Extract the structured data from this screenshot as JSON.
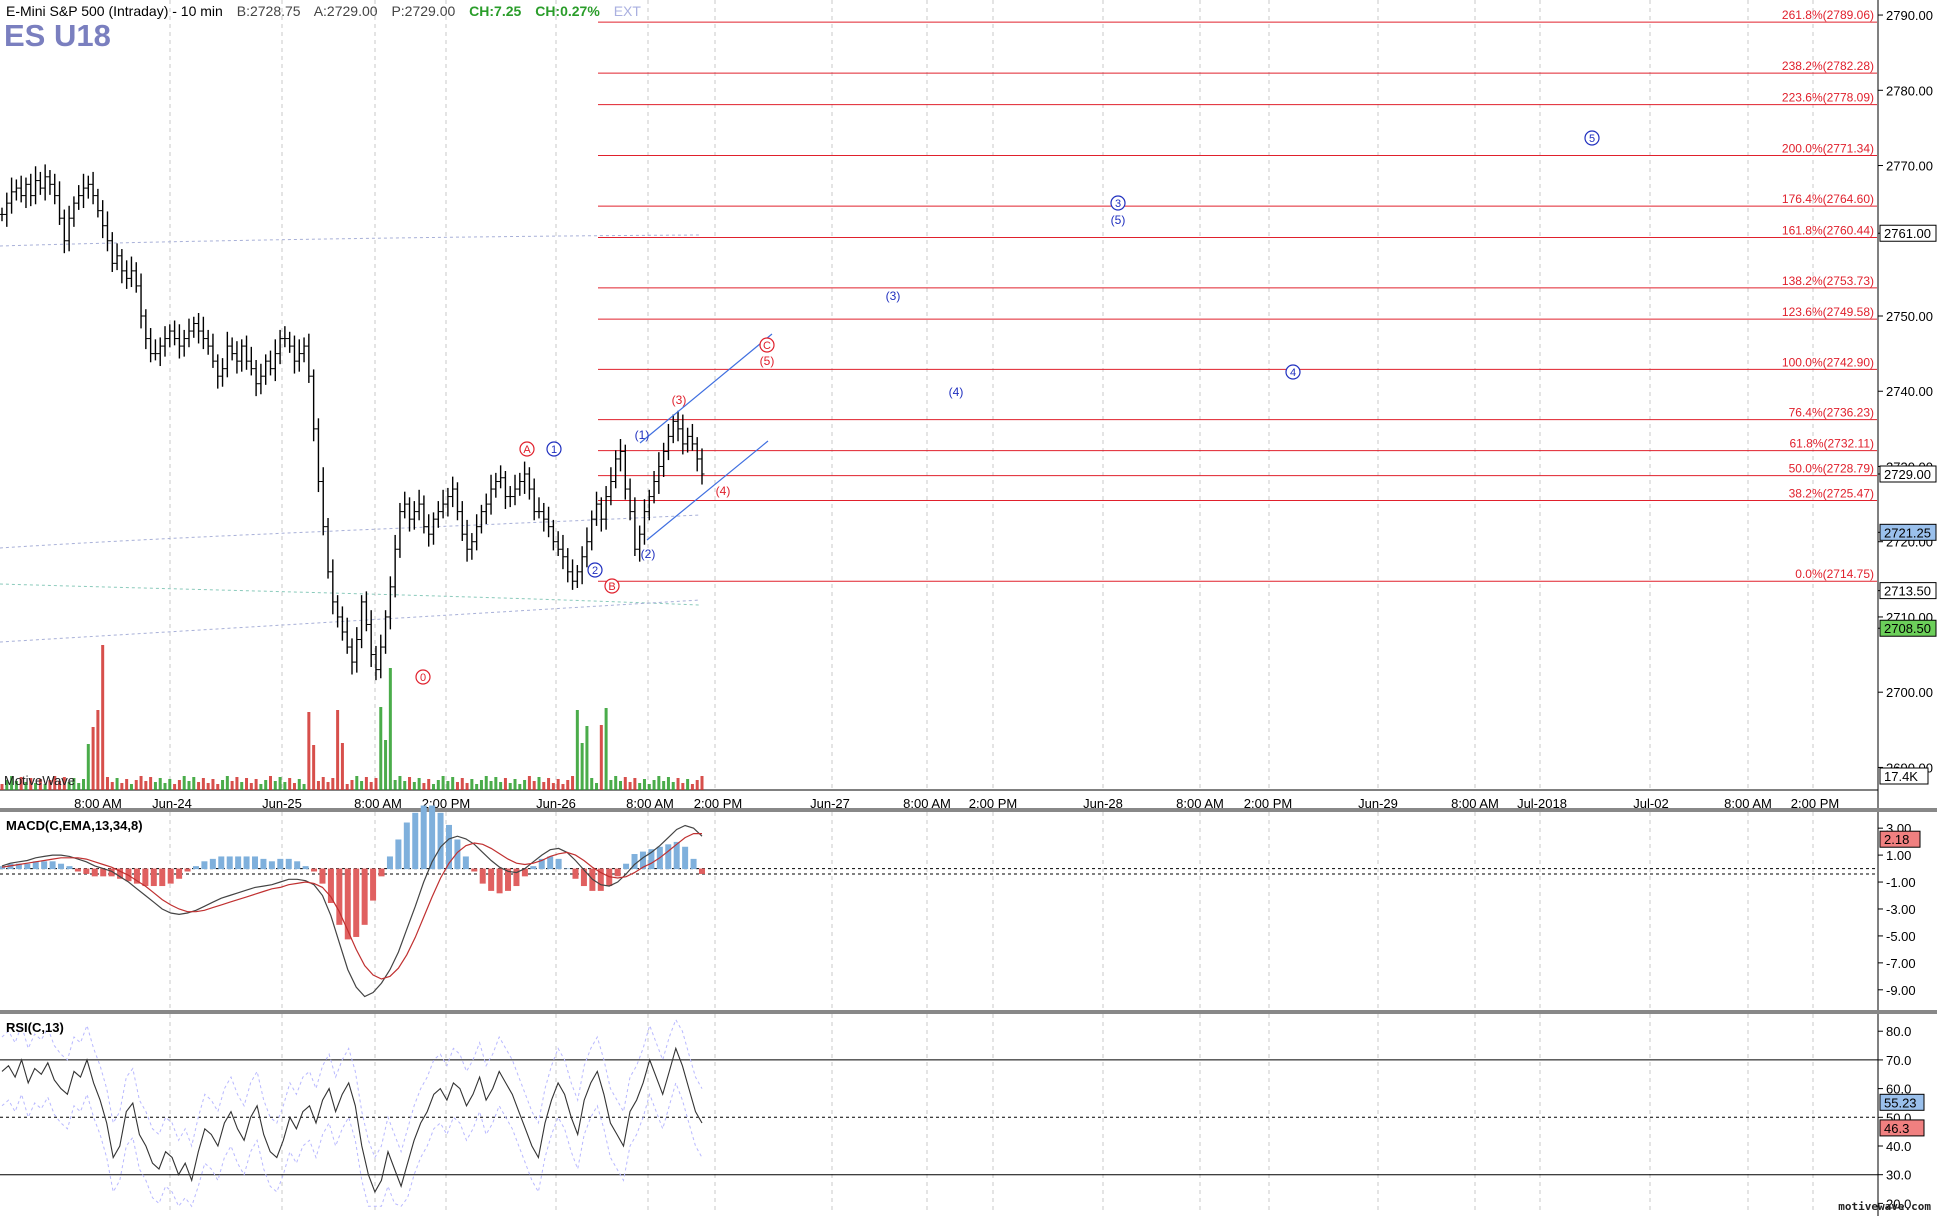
{
  "header": {
    "title": "E-Mini S&P 500 (Intraday) - 10 min",
    "bid": "B:2728.75",
    "ask": "A:2729.00",
    "price": "P:2729.00",
    "change": "CH:7.25",
    "change_pct": "CH:0.27%",
    "ext": "EXT",
    "symbol": "ES U18"
  },
  "colors": {
    "fib": "#e0202c",
    "wave_blue": "#1f2fbf",
    "wave_red": "#e0202c",
    "channel": "#3f6fe0",
    "up_bar": "#2a9d2a",
    "down_bar": "#d0302c",
    "price_bar": "#000000",
    "macd_hist_up": "#7fb0dc",
    "macd_hist_down": "#e06060"
  },
  "watermark": "MotiveWave",
  "footer_brand": "motivewave.com",
  "volume_label": "17.4K",
  "chart_data": {
    "type": "line",
    "title": "E-Mini S&P 500 (Intraday) - 10 min",
    "price_axis": {
      "ticks": [
        "2790.00",
        "2780.00",
        "2770.00",
        "2761.00",
        "2750.00",
        "2740.00",
        "2730.00",
        "2729.00",
        "2721.25",
        "2720.00",
        "2713.50",
        "2710.00",
        "2708.50",
        "2700.00",
        "2690.00"
      ],
      "ylim": [
        2687,
        2792
      ]
    },
    "price_tags": [
      {
        "value": "2761.00",
        "style": "plain"
      },
      {
        "value": "2729.00",
        "style": "plain"
      },
      {
        "value": "2721.25",
        "style": "blue"
      },
      {
        "value": "2713.50",
        "style": "plain"
      },
      {
        "value": "2708.50",
        "style": "green"
      }
    ],
    "x_labels": [
      "8:00 AM",
      "Jun-24",
      "Jun-25",
      "8:00 AM",
      "2:00 PM",
      "Jun-26",
      "8:00 AM",
      "2:00 PM",
      "Jun-27",
      "8:00 AM",
      "2:00 PM",
      "Jun-28",
      "8:00 AM",
      "2:00 PM",
      "Jun-29",
      "8:00 AM",
      "Jul-2018",
      "Jul-02",
      "8:00 AM",
      "2:00 PM"
    ],
    "fib_levels": [
      {
        "pct": "261.8%",
        "value": 2789.06
      },
      {
        "pct": "238.2%",
        "value": 2782.28
      },
      {
        "pct": "223.6%",
        "value": 2778.09
      },
      {
        "pct": "200.0%",
        "value": 2771.34
      },
      {
        "pct": "176.4%",
        "value": 2764.6
      },
      {
        "pct": "161.8%",
        "value": 2760.44
      },
      {
        "pct": "138.2%",
        "value": 2753.73
      },
      {
        "pct": "123.6%",
        "value": 2749.58
      },
      {
        "pct": "100.0%",
        "value": 2742.9
      },
      {
        "pct": "76.4%",
        "value": 2736.23
      },
      {
        "pct": "61.8%",
        "value": 2732.11
      },
      {
        "pct": "50.0%",
        "value": 2728.79
      },
      {
        "pct": "38.2%",
        "value": 2725.47
      },
      {
        "pct": "0.0%",
        "value": 2714.75
      }
    ],
    "wave_labels": [
      {
        "text": "A",
        "color": "red",
        "circled": true
      },
      {
        "text": "1",
        "color": "blue",
        "circled": true
      },
      {
        "text": "2",
        "color": "blue",
        "circled": true
      },
      {
        "text": "B",
        "color": "red",
        "circled": true
      },
      {
        "text": "0",
        "color": "red",
        "circled": true
      },
      {
        "text": "(1)",
        "color": "blue",
        "circled": false
      },
      {
        "text": "(2)",
        "color": "blue",
        "circled": false
      },
      {
        "text": "(3)",
        "color": "red",
        "circled": false
      },
      {
        "text": "(4)",
        "color": "red",
        "circled": false
      },
      {
        "text": "C",
        "color": "red",
        "circled": true
      },
      {
        "text": "(5)",
        "color": "red",
        "circled": false
      },
      {
        "text": "(3)",
        "color": "blue",
        "circled": false
      },
      {
        "text": "(4)",
        "color": "blue",
        "circled": false
      },
      {
        "text": "3",
        "color": "blue",
        "circled": true
      },
      {
        "text": "(5)",
        "color": "blue",
        "circled": false
      },
      {
        "text": "4",
        "color": "blue",
        "circled": true
      },
      {
        "text": "5",
        "color": "blue",
        "circled": true
      }
    ],
    "price_series": {
      "name": "ES U18",
      "values": [
        2763.5,
        2765,
        2766.5,
        2767,
        2766,
        2767.5,
        2766,
        2768,
        2767,
        2768.5,
        2767.5,
        2766,
        2763,
        2760,
        2763,
        2765,
        2766,
        2767,
        2767.5,
        2766,
        2764,
        2762,
        2760,
        2757,
        2758,
        2756,
        2755,
        2756,
        2754,
        2750,
        2747,
        2745,
        2745,
        2746,
        2747,
        2748,
        2747,
        2746,
        2747,
        2748,
        2749,
        2748,
        2747,
        2746,
        2744,
        2742,
        2743,
        2746,
        2745,
        2744,
        2746,
        2744,
        2743,
        2741,
        2742,
        2744,
        2743,
        2745,
        2747,
        2747,
        2746,
        2744,
        2745,
        2746,
        2742,
        2735,
        2728,
        2722,
        2716,
        2712,
        2710,
        2708,
        2706,
        2704,
        2707,
        2712,
        2709,
        2705,
        2703,
        2706,
        2710,
        2714,
        2719,
        2724,
        2725,
        2723,
        2724,
        2725,
        2722,
        2721,
        2723,
        2724,
        2725,
        2726,
        2727,
        2724,
        2721,
        2719,
        2720,
        2722,
        2724,
        2725,
        2727,
        2728,
        2728.5,
        2726,
        2726,
        2727,
        2728,
        2729,
        2727,
        2724,
        2724,
        2723,
        2722,
        2720,
        2719,
        2718,
        2716,
        2714.75,
        2716,
        2718,
        2720,
        2723,
        2725,
        2723,
        2726,
        2728,
        2731,
        2732,
        2727,
        2724,
        2719,
        2721,
        2724,
        2726,
        2728,
        2730,
        2732,
        2734,
        2736,
        2735,
        2733,
        2734,
        2733,
        2731,
        2729
      ]
    },
    "macd": {
      "title": "MACD(C,EMA,13,34,8)",
      "ticks": [
        "3.00",
        "1.00",
        "-1.00",
        "-3.00",
        "-5.00",
        "-7.00",
        "-9.00"
      ],
      "ylim": [
        -10.5,
        4.2
      ],
      "current": "2.18",
      "macd_values": [
        0.2,
        0.4,
        0.5,
        0.6,
        0.8,
        0.9,
        1.0,
        1.0,
        0.9,
        0.7,
        0.5,
        0.2,
        0.0,
        -0.2,
        -0.6,
        -1.0,
        -1.5,
        -2.0,
        -2.5,
        -3.0,
        -3.3,
        -3.4,
        -3.3,
        -3.1,
        -2.8,
        -2.5,
        -2.2,
        -2.0,
        -1.8,
        -1.6,
        -1.4,
        -1.3,
        -1.2,
        -1.0,
        -0.8,
        -0.8,
        -0.9,
        -1.2,
        -2.0,
        -3.5,
        -5.5,
        -7.5,
        -8.8,
        -9.5,
        -9.2,
        -8.5,
        -7.5,
        -6.2,
        -4.5,
        -2.8,
        -1.0,
        0.5,
        1.6,
        2.2,
        2.4,
        2.2,
        1.8,
        1.2,
        0.6,
        0.1,
        -0.2,
        -0.3,
        0.0,
        0.5,
        1.0,
        1.4,
        1.5,
        1.2,
        0.6,
        -0.1,
        -0.8,
        -1.2,
        -1.3,
        -1.0,
        -0.4,
        0.3,
        0.8,
        1.2,
        1.7,
        2.3,
        2.9,
        3.2,
        3.0,
        2.4
      ],
      "signal_values": [
        0.1,
        0.2,
        0.3,
        0.4,
        0.5,
        0.6,
        0.7,
        0.8,
        0.8,
        0.8,
        0.7,
        0.5,
        0.3,
        0.1,
        -0.2,
        -0.5,
        -0.9,
        -1.3,
        -1.8,
        -2.3,
        -2.7,
        -3.0,
        -3.2,
        -3.2,
        -3.1,
        -2.9,
        -2.7,
        -2.5,
        -2.3,
        -2.1,
        -1.9,
        -1.7,
        -1.5,
        -1.4,
        -1.2,
        -1.1,
        -1.0,
        -1.1,
        -1.4,
        -2.1,
        -3.2,
        -4.6,
        -6.0,
        -7.2,
        -7.9,
        -8.2,
        -8.0,
        -7.4,
        -6.4,
        -5.1,
        -3.6,
        -2.1,
        -0.7,
        0.4,
        1.2,
        1.7,
        1.9,
        1.8,
        1.5,
        1.1,
        0.7,
        0.4,
        0.3,
        0.4,
        0.6,
        0.9,
        1.1,
        1.2,
        1.0,
        0.6,
        0.1,
        -0.3,
        -0.6,
        -0.7,
        -0.6,
        -0.3,
        0.1,
        0.4,
        0.8,
        1.3,
        1.8,
        2.3,
        2.6,
        2.6
      ]
    },
    "rsi": {
      "title": "RSI(C,13)",
      "ticks": [
        "80.0",
        "70.0",
        "60.0",
        "50.0",
        "40.0",
        "30.0",
        "20.0"
      ],
      "ylim": [
        17,
        86
      ],
      "upper": 70,
      "lower": 30,
      "tags": [
        {
          "value": "55.23",
          "style": "blue"
        },
        {
          "value": "46.3",
          "style": "red"
        }
      ],
      "values": [
        66,
        68,
        64,
        70,
        62,
        67,
        65,
        69,
        63,
        60,
        58,
        66,
        64,
        70,
        62,
        56,
        48,
        36,
        40,
        52,
        55,
        44,
        40,
        34,
        32,
        38,
        36,
        30,
        34,
        28,
        38,
        46,
        44,
        40,
        48,
        52,
        46,
        42,
        50,
        54,
        44,
        38,
        36,
        42,
        50,
        46,
        52,
        54,
        48,
        56,
        60,
        52,
        58,
        62,
        54,
        40,
        30,
        24,
        28,
        38,
        32,
        26,
        34,
        42,
        48,
        52,
        58,
        60,
        56,
        62,
        60,
        54,
        58,
        64,
        56,
        60,
        66,
        62,
        58,
        52,
        46,
        40,
        36,
        48,
        56,
        62,
        58,
        50,
        44,
        56,
        62,
        66,
        58,
        48,
        44,
        40,
        52,
        56,
        62,
        70,
        64,
        58,
        66,
        74,
        68,
        60,
        52,
        48
      ]
    }
  }
}
